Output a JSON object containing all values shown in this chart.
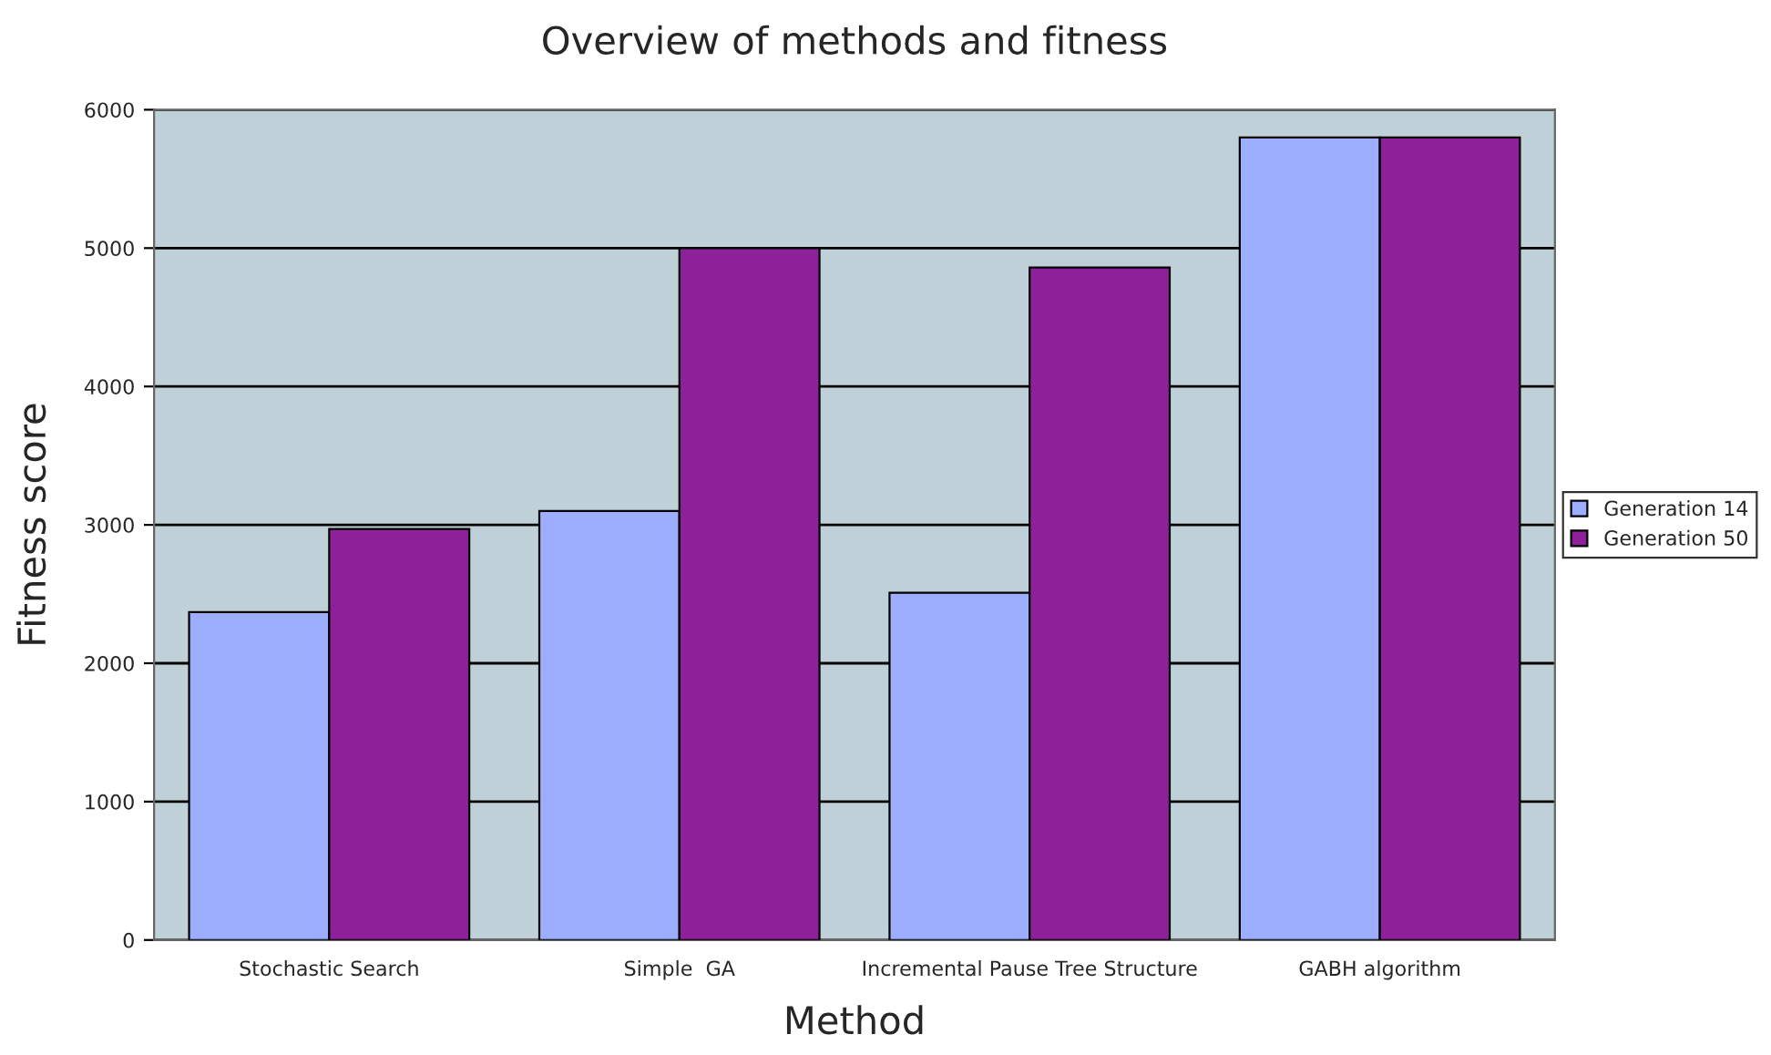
{
  "chart_data": {
    "type": "bar",
    "title": "Overview of methods and fitness",
    "xlabel": "Method",
    "ylabel": "Fitness score",
    "categories": [
      "Stochastic Search",
      "Simple  GA",
      "Incremental Pause Tree Structure",
      "GABH algorithm"
    ],
    "series": [
      {
        "name": "Generation 14",
        "color": "#9daeff",
        "values": [
          2370,
          3100,
          2510,
          5800
        ]
      },
      {
        "name": "Generation 50",
        "color": "#8e2199",
        "values": [
          2970,
          5000,
          4860,
          5800
        ]
      }
    ],
    "ylim": [
      0,
      6000
    ],
    "yticks": [
      0,
      1000,
      2000,
      3000,
      4000,
      5000,
      6000
    ],
    "grid": "y",
    "legend": "right"
  }
}
